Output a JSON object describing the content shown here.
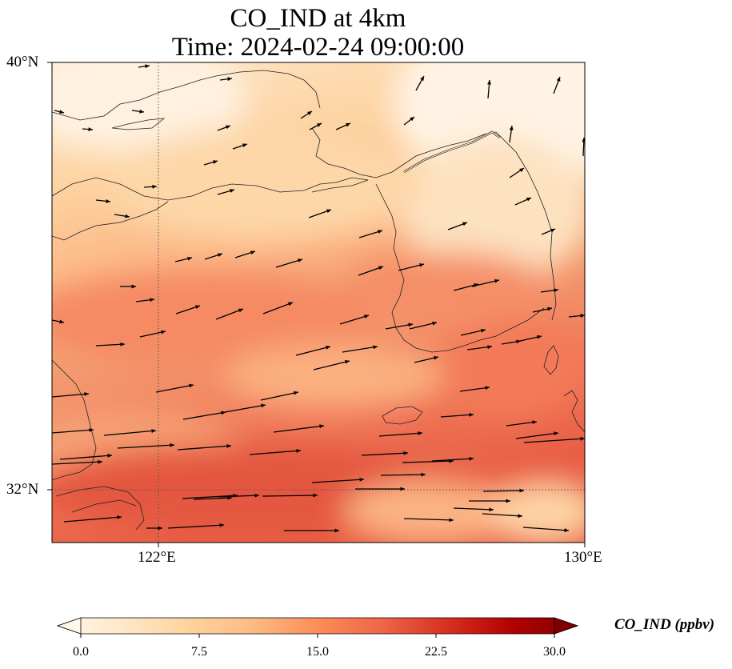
{
  "title": {
    "line1": "CO_IND at 4km",
    "line2": "Time: 2024-02-24 09:00:00"
  },
  "axes": {
    "lat_labels": [
      "40°N",
      "32°N"
    ],
    "lon_labels": [
      "122°E",
      "130°E"
    ],
    "lat_range": [
      31,
      40
    ],
    "lon_range": [
      120,
      130
    ],
    "gridlines": {
      "lat": [
        32
      ],
      "lon": [
        122
      ],
      "style": "dotted"
    }
  },
  "colorbar": {
    "label": "CO_IND (ppbv)",
    "ticks": [
      "0.0",
      "7.5",
      "15.0",
      "22.5",
      "30.0"
    ],
    "range": [
      0,
      30
    ],
    "colormap": "OrRd",
    "extend": "both"
  },
  "colors": {
    "low": "#fff7ec",
    "mid_low": "#fdd49e",
    "mid": "#fc8d59",
    "high": "#d7301f",
    "max": "#7f0000"
  },
  "field_description_values": {
    "band_high_south": 17,
    "band_moderate_central": 13,
    "background_north": 6,
    "northeast_min": 3
  },
  "wind_vectors_note": "arrows predominantly westerly, northward in north-east"
}
